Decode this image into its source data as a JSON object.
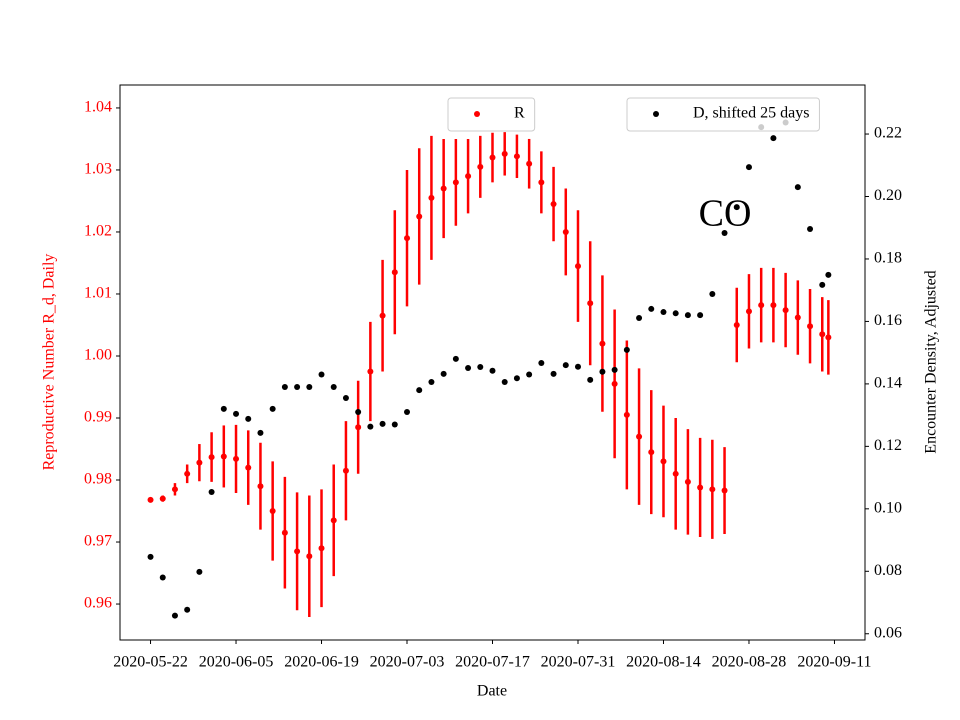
{
  "chart_data": {
    "type": "scatter",
    "x_label": "Date",
    "y_label": "Reproductive Number R_d, Daily",
    "y2_label": "Encounter Density, Adjusted",
    "annotation": "CO",
    "x": [
      "2020-05-22",
      "2020-05-24",
      "2020-05-26",
      "2020-05-28",
      "2020-05-30",
      "2020-06-01",
      "2020-06-03",
      "2020-06-05",
      "2020-06-07",
      "2020-06-09",
      "2020-06-11",
      "2020-06-13",
      "2020-06-15",
      "2020-06-17",
      "2020-06-19",
      "2020-06-21",
      "2020-06-23",
      "2020-06-25",
      "2020-06-27",
      "2020-06-29",
      "2020-07-01",
      "2020-07-03",
      "2020-07-05",
      "2020-07-07",
      "2020-07-09",
      "2020-07-11",
      "2020-07-13",
      "2020-07-15",
      "2020-07-17",
      "2020-07-19",
      "2020-07-21",
      "2020-07-23",
      "2020-07-25",
      "2020-07-27",
      "2020-07-29",
      "2020-07-31",
      "2020-08-02",
      "2020-08-04",
      "2020-08-06",
      "2020-08-08",
      "2020-08-10",
      "2020-08-12",
      "2020-08-14",
      "2020-08-16",
      "2020-08-18",
      "2020-08-20",
      "2020-08-22",
      "2020-08-24",
      "2020-08-26",
      "2020-08-28",
      "2020-08-30",
      "2020-09-01",
      "2020-09-03",
      "2020-09-05",
      "2020-09-07",
      "2020-09-09",
      "2020-09-10"
    ],
    "series": [
      {
        "name": "R",
        "color": "#ff0000",
        "axis": "y",
        "legend": "upper center",
        "values": [
          0.9768,
          0.977,
          0.9785,
          0.981,
          0.9828,
          0.9837,
          0.9838,
          0.9834,
          0.982,
          0.979,
          0.975,
          0.9715,
          0.9685,
          0.9677,
          0.969,
          0.9735,
          0.9815,
          0.9885,
          0.9975,
          1.0065,
          1.0135,
          1.019,
          1.0225,
          1.0255,
          1.027,
          1.028,
          1.029,
          1.0305,
          1.032,
          1.0326,
          1.0322,
          1.031,
          1.028,
          1.0245,
          1.02,
          1.0145,
          1.0085,
          1.002,
          0.9955,
          0.9905,
          0.987,
          0.9845,
          0.983,
          0.981,
          0.9797,
          0.9788,
          0.9785,
          0.9783,
          1.005,
          1.0072,
          1.0082,
          1.0082,
          1.0074,
          1.0062,
          1.0048,
          1.0035,
          1.003
        ],
        "errors": [
          0.0002,
          0.0005,
          0.001,
          0.0015,
          0.003,
          0.004,
          0.005,
          0.0055,
          0.006,
          0.007,
          0.008,
          0.009,
          0.0095,
          0.0098,
          0.0095,
          0.009,
          0.008,
          0.0075,
          0.008,
          0.009,
          0.01,
          0.011,
          0.011,
          0.01,
          0.008,
          0.007,
          0.006,
          0.005,
          0.004,
          0.0035,
          0.0035,
          0.004,
          0.005,
          0.006,
          0.007,
          0.009,
          0.01,
          0.011,
          0.012,
          0.012,
          0.011,
          0.01,
          0.009,
          0.009,
          0.0085,
          0.008,
          0.008,
          0.007,
          0.006,
          0.006,
          0.006,
          0.006,
          0.006,
          0.006,
          0.006,
          0.006,
          0.006
        ]
      },
      {
        "name": "D, shifted 25 days",
        "color": "#000000",
        "axis": "y2",
        "legend": "upper right",
        "values": [
          0.0846,
          0.078,
          0.0658,
          0.0677,
          0.0798,
          0.1054,
          0.132,
          0.1304,
          0.1288,
          0.1243,
          0.132,
          0.139,
          0.139,
          0.139,
          0.143,
          0.139,
          0.1355,
          0.131,
          0.1263,
          0.1272,
          0.127,
          0.131,
          0.138,
          0.1406,
          0.1432,
          0.148,
          0.1451,
          0.1454,
          0.1442,
          0.1406,
          0.1418,
          0.143,
          0.1467,
          0.1432,
          0.146,
          0.1455,
          0.1413,
          0.1439,
          0.1445,
          0.1509,
          0.1611,
          0.164,
          0.163,
          0.1626,
          0.162,
          0.162,
          0.1688,
          0.1883,
          0.1966,
          0.2094,
          0.2222,
          0.2187,
          0.2237,
          0.203,
          0.1896,
          0.1717,
          0.1749
        ]
      }
    ],
    "xlim": [
      "2020-05-17",
      "2020-09-16"
    ],
    "xticks": [
      "2020-05-22",
      "2020-06-05",
      "2020-06-19",
      "2020-07-03",
      "2020-07-17",
      "2020-07-31",
      "2020-08-14",
      "2020-08-28",
      "2020-09-11"
    ],
    "ylim": [
      0.9542,
      1.0437
    ],
    "yticks": [
      0.96,
      0.97,
      0.98,
      0.99,
      {
        "value": 1,
        "label": "1.00"
      },
      1.01,
      1.02,
      1.03,
      1.04
    ],
    "y_color": "#ff0000",
    "y2lim": [
      0.058,
      0.2357
    ],
    "y2ticks": [
      0.06,
      0.08,
      {
        "value": 0.1,
        "label": "0.10"
      },
      0.12,
      0.14,
      0.16,
      0.18,
      {
        "value": 0.2,
        "label": "0.20"
      },
      0.22
    ]
  }
}
